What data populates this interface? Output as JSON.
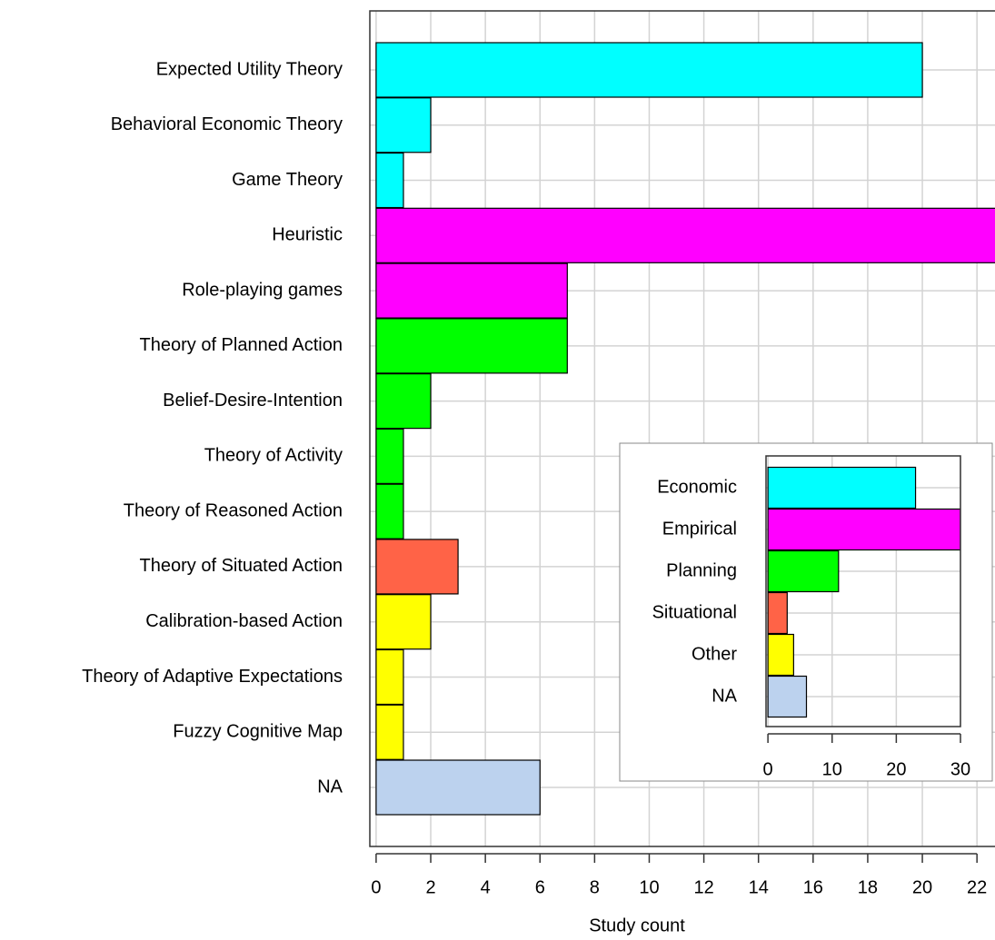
{
  "chart_data": [
    {
      "type": "bar",
      "orientation": "horizontal",
      "x_label": "Study count",
      "categories": [
        "Expected Utility Theory",
        "Behavioral Economic Theory",
        "Game Theory",
        "Heuristic",
        "Role-playing games",
        "Theory of Planned Action",
        "Belief-Desire-Intention",
        "Theory of Activity",
        "Theory of Reasoned Action",
        "Theory of Situated Action",
        "Calibration-based Action",
        "Theory of Adaptive Expectations",
        "Fuzzy Cognitive Map",
        "NA"
      ],
      "values": [
        20,
        2,
        1,
        23,
        7,
        7,
        2,
        1,
        1,
        3,
        2,
        1,
        1,
        6
      ],
      "colors": [
        "#00ffff",
        "#00ffff",
        "#00ffff",
        "#ff00ff",
        "#ff00ff",
        "#00ff00",
        "#00ff00",
        "#00ff00",
        "#00ff00",
        "#ff6347",
        "#ffff00",
        "#ffff00",
        "#ffff00",
        "#bcd2ee"
      ],
      "xlim": [
        -0.23,
        22.66
      ],
      "xticks": [
        0,
        2,
        4,
        6,
        8,
        10,
        12,
        14,
        16,
        18,
        20,
        22
      ],
      "grid": true
    },
    {
      "type": "bar",
      "orientation": "horizontal",
      "categories": [
        "Economic",
        "Empirical",
        "Planning",
        "Situational",
        "Other",
        "NA"
      ],
      "values": [
        23,
        30,
        11,
        3,
        4,
        6
      ],
      "colors": [
        "#00ffff",
        "#ff00ff",
        "#00ff00",
        "#ff6347",
        "#ffff00",
        "#bcd2ee"
      ],
      "xlim": [
        -0.3,
        30
      ],
      "xticks": [
        0,
        10,
        20,
        30
      ],
      "grid": true
    }
  ]
}
